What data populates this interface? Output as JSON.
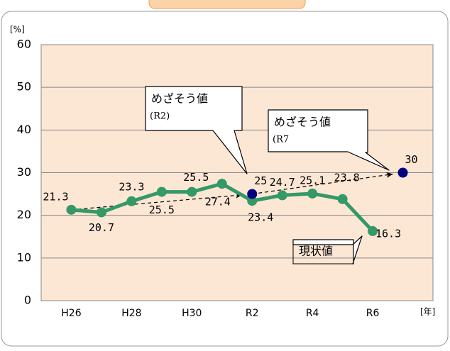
{
  "chart_data": {
    "type": "line",
    "y_label": "[%]",
    "x_label": "[年]",
    "categories": [
      "H26",
      null,
      "H28",
      null,
      "H30",
      null,
      "R2",
      null,
      "R4",
      null,
      "R6",
      null
    ],
    "series": [
      {
        "name": "現状値",
        "color": "#339966",
        "values": [
          21.3,
          20.7,
          23.3,
          25.5,
          25.5,
          27.4,
          23.4,
          24.7,
          25.1,
          23.8,
          16.3,
          null
        ]
      },
      {
        "name": "めざそう値",
        "color": "#000080",
        "values": [
          null,
          null,
          null,
          null,
          null,
          null,
          25,
          null,
          null,
          null,
          null,
          30
        ]
      }
    ],
    "annotations": [
      {
        "text": "めざそう値",
        "sub": "(R2)"
      },
      {
        "text": "めざそう値",
        "sub": "(R7"
      },
      {
        "text": "現状値"
      }
    ],
    "ylim": [
      0,
      60
    ],
    "yticks": [
      0,
      10,
      20,
      30,
      40,
      50,
      60
    ],
    "grid": true
  }
}
